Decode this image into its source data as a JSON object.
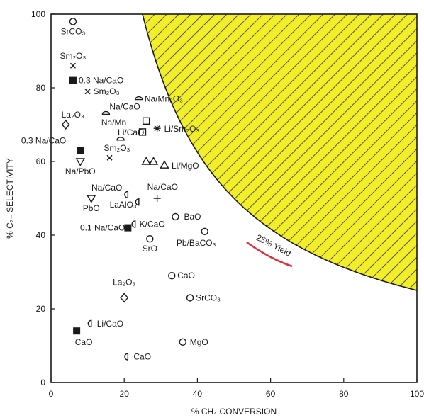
{
  "chart_data": {
    "type": "scatter",
    "title": "",
    "xlabel": "% CH₄ CONVERSION",
    "ylabel": "% C₂₊ SELECTIVITY",
    "xlim": [
      0,
      100
    ],
    "ylim": [
      0,
      100
    ],
    "x_ticks": [
      0,
      20,
      40,
      60,
      80,
      100
    ],
    "y_ticks": [
      0,
      20,
      40,
      60,
      80,
      100
    ],
    "grid": false,
    "shaded_region": {
      "description_label": "25% Yield",
      "yield_percent": 25,
      "fill_color": "#f2ee2a",
      "hatch_color": "#2a2a2a",
      "label_underline_color": "#d8323c"
    },
    "points": [
      {
        "label": "SrCO₃",
        "x": 6,
        "y": 98,
        "marker": "circle"
      },
      {
        "label": "Sm₂O₃",
        "x": 6,
        "y": 86,
        "marker": "x"
      },
      {
        "label": "0.3 Na/CaO",
        "x": 6,
        "y": 82,
        "marker": "square-filled"
      },
      {
        "label": "Sm₂O₃",
        "x": 10,
        "y": 79,
        "marker": "x"
      },
      {
        "label": "Na/Mn₂O₃",
        "x": 24,
        "y": 77,
        "marker": "semicircle"
      },
      {
        "label": "Na/CaO",
        "x": 15,
        "y": 73,
        "marker": "semicircle"
      },
      {
        "label": "La₂O₃",
        "x": 4,
        "y": 70,
        "marker": "diamond"
      },
      {
        "label": "Na/Mn",
        "x": 26,
        "y": 71,
        "marker": "square"
      },
      {
        "label": "",
        "x": 25,
        "y": 68,
        "marker": "square"
      },
      {
        "label": "Li/Sm₂O₃",
        "x": 29,
        "y": 69,
        "marker": "star"
      },
      {
        "label": "Li/CaO",
        "x": 19,
        "y": 66,
        "marker": "semicircle"
      },
      {
        "label": "0.3 Na/CaO",
        "x": 8,
        "y": 63,
        "marker": "square-filled"
      },
      {
        "label": "Sm₂O₃",
        "x": 16,
        "y": 61,
        "marker": "x"
      },
      {
        "label": "Na/PbO",
        "x": 8,
        "y": 60,
        "marker": "triangle-down"
      },
      {
        "label": "",
        "x": 26,
        "y": 60,
        "marker": "triangle"
      },
      {
        "label": "",
        "x": 28,
        "y": 60,
        "marker": "triangle"
      },
      {
        "label": "Li/MgO",
        "x": 31,
        "y": 59,
        "marker": "triangle"
      },
      {
        "label": "Na/CaO",
        "x": 21,
        "y": 51,
        "marker": "half-circle"
      },
      {
        "label": "Na/CaO",
        "x": 29,
        "y": 50,
        "marker": "plus"
      },
      {
        "label": "PbO",
        "x": 11,
        "y": 50,
        "marker": "triangle-down"
      },
      {
        "label": "LaAlO₃",
        "x": 24,
        "y": 49,
        "marker": "half-circle"
      },
      {
        "label": "BaO",
        "x": 34,
        "y": 45,
        "marker": "circle"
      },
      {
        "label": "0.1 Na/CaO",
        "x": 21,
        "y": 42,
        "marker": "square-filled"
      },
      {
        "label": "K/CaO",
        "x": 23,
        "y": 43,
        "marker": "half-circle"
      },
      {
        "label": "Pb/BaCO₃",
        "x": 42,
        "y": 41,
        "marker": "circle"
      },
      {
        "label": "SrO",
        "x": 27,
        "y": 39,
        "marker": "circle"
      },
      {
        "label": "CaO",
        "x": 33,
        "y": 29,
        "marker": "circle"
      },
      {
        "label": "La₂O₃",
        "x": 20,
        "y": 23,
        "marker": "diamond"
      },
      {
        "label": "SrCO₃",
        "x": 38,
        "y": 23,
        "marker": "circle"
      },
      {
        "label": "Li/CaO",
        "x": 11,
        "y": 16,
        "marker": "half-circle"
      },
      {
        "label": "CaO",
        "x": 7,
        "y": 14,
        "marker": "square-filled"
      },
      {
        "label": "MgO",
        "x": 36,
        "y": 11,
        "marker": "circle"
      },
      {
        "label": "CaO",
        "x": 21,
        "y": 7,
        "marker": "half-circle"
      }
    ]
  }
}
